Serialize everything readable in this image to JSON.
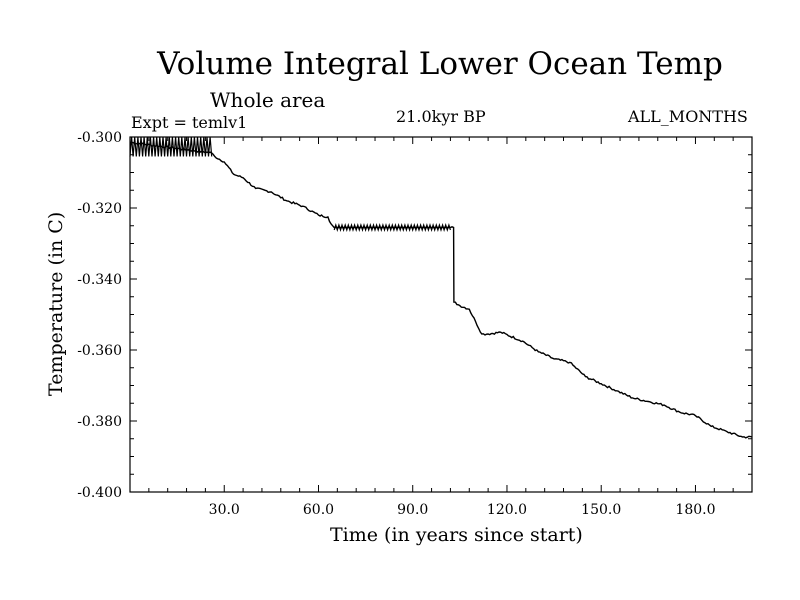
{
  "chart_data": {
    "type": "line",
    "title": "Volume Integral Lower Ocean Temp",
    "subtitle": "Whole area",
    "experiment": "Expt = temlv1",
    "period": "21.0kyr BP",
    "months": "ALL_MONTHS",
    "xlabel": "Time (in years since start)",
    "ylabel": "Temperature (in C)",
    "xlim": [
      0,
      198
    ],
    "ylim": [
      -0.4,
      -0.3
    ],
    "xticks": [
      30,
      60,
      90,
      120,
      150,
      180
    ],
    "xtick_labels": [
      "30.0",
      "60.0",
      "90.0",
      "120.0",
      "150.0",
      "180.0"
    ],
    "yticks": [
      -0.4,
      -0.38,
      -0.36,
      -0.34,
      -0.32,
      -0.3
    ],
    "ytick_labels": [
      "-0.400",
      "-0.380",
      "-0.360",
      "-0.340",
      "-0.320",
      "-0.300"
    ],
    "series": [
      {
        "name": "temlv1",
        "x": [
          0,
          26,
          27,
          30,
          33,
          36,
          40,
          45,
          50,
          55,
          60,
          63,
          64,
          65,
          102,
          103,
          103.1,
          105,
          108,
          110,
          112,
          114,
          118,
          125,
          130,
          135,
          140,
          145,
          150,
          155,
          160,
          165,
          170,
          175,
          180,
          185,
          190,
          195,
          198
        ],
        "y": [
          -0.3015,
          -0.3045,
          -0.3055,
          -0.307,
          -0.3105,
          -0.3115,
          -0.3145,
          -0.3155,
          -0.318,
          -0.3195,
          -0.322,
          -0.3225,
          -0.3245,
          -0.3255,
          -0.3255,
          -0.3255,
          -0.3465,
          -0.3475,
          -0.3485,
          -0.352,
          -0.3555,
          -0.3555,
          -0.355,
          -0.3575,
          -0.3605,
          -0.3625,
          -0.3635,
          -0.3675,
          -0.3695,
          -0.3715,
          -0.3735,
          -0.3745,
          -0.3755,
          -0.3775,
          -0.3785,
          -0.3815,
          -0.383,
          -0.3845,
          -0.3845
        ]
      }
    ],
    "oscillation": [
      {
        "x_start": 0,
        "x_end": 26,
        "y_low": -0.3055,
        "y_high": -0.3,
        "period_years": 1
      },
      {
        "x_start": 65,
        "x_end": 102,
        "y_low": -0.3262,
        "y_high": -0.3248,
        "period_years": 1
      }
    ]
  }
}
